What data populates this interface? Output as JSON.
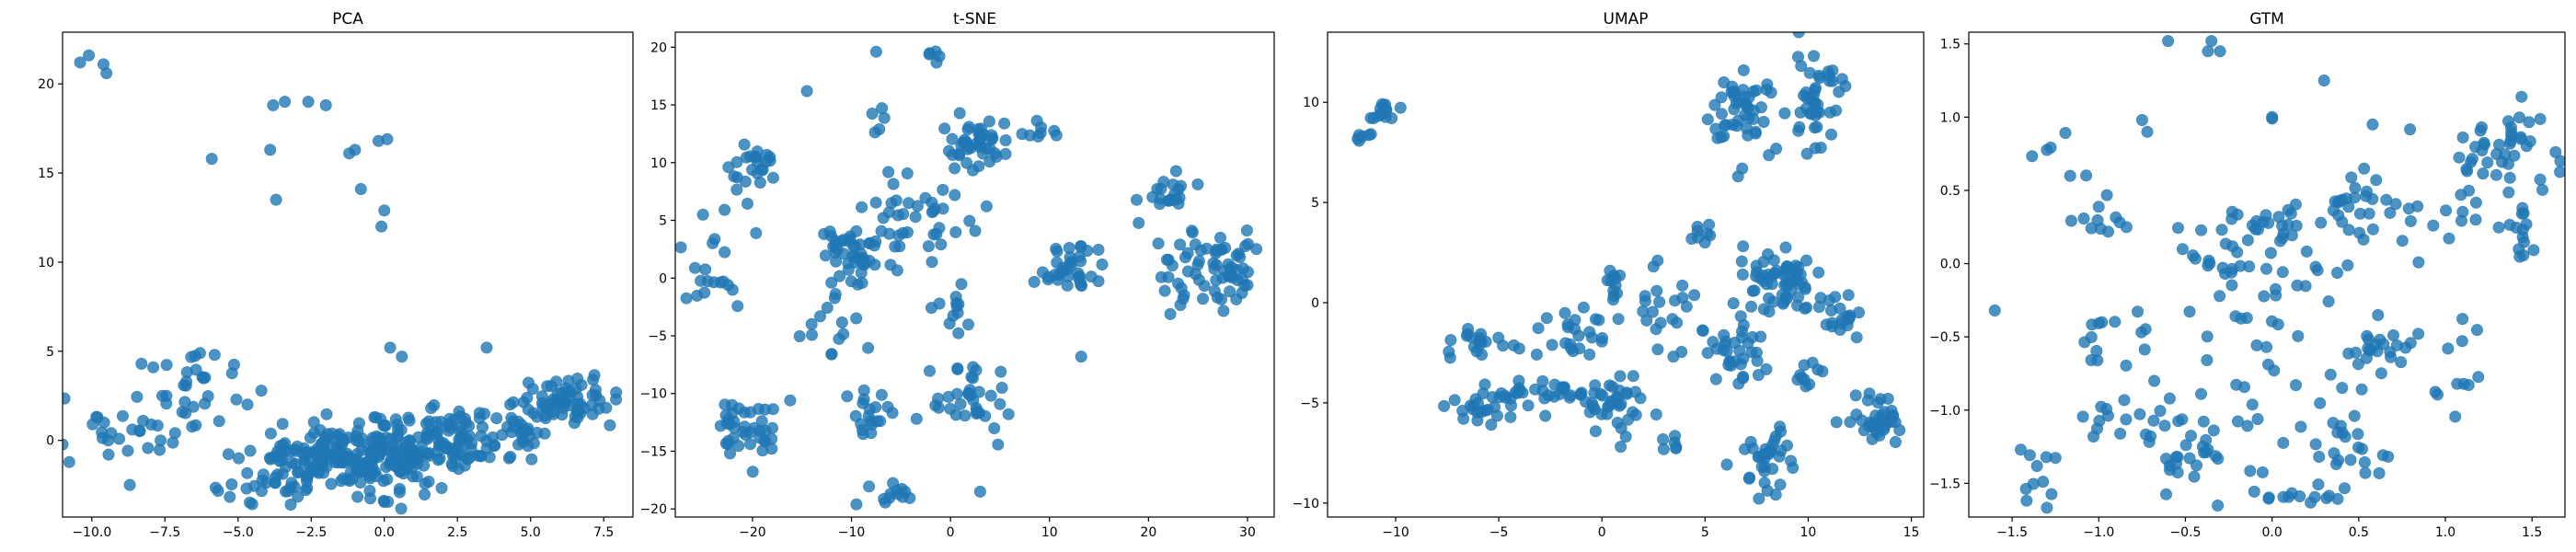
{
  "chart_data": [
    {
      "type": "scatter",
      "title": "PCA",
      "xlim": [
        -11,
        8.5
      ],
      "ylim": [
        -4.3,
        22.9
      ],
      "xticks": [
        -10.0,
        -7.5,
        -5.0,
        -2.5,
        0.0,
        2.5,
        5.0,
        7.5
      ],
      "xtick_labels": [
        "−10.0",
        "−7.5",
        "−5.0",
        "−2.5",
        "0.0",
        "2.5",
        "5.0",
        "7.5"
      ],
      "yticks": [
        0,
        5,
        10,
        15,
        20
      ],
      "ytick_labels": [
        "0",
        "5",
        "10",
        "15",
        "20"
      ],
      "color": "#1f77b4",
      "clusters": [
        {
          "cx": -1.0,
          "cy": -1.0,
          "sx": 1.8,
          "sy": 0.9,
          "n": 260
        },
        {
          "cx": 2.5,
          "cy": 0.2,
          "sx": 1.2,
          "sy": 0.8,
          "n": 80
        },
        {
          "cx": 6.2,
          "cy": 2.2,
          "sx": 0.8,
          "sy": 0.7,
          "n": 70
        },
        {
          "cx": 4.8,
          "cy": 0.5,
          "sx": 0.5,
          "sy": 0.6,
          "n": 20
        },
        {
          "cx": -6.5,
          "cy": 2.5,
          "sx": 0.9,
          "sy": 1.0,
          "n": 30
        },
        {
          "cx": -9.0,
          "cy": 0.5,
          "sx": 1.0,
          "sy": 1.0,
          "n": 25
        },
        {
          "cx": -4.5,
          "cy": -2.5,
          "sx": 0.8,
          "sy": 0.5,
          "n": 15
        }
      ],
      "points": [
        [
          -10.4,
          21.2
        ],
        [
          -10.1,
          21.6
        ],
        [
          -9.6,
          21.1
        ],
        [
          -9.5,
          20.6
        ],
        [
          -3.8,
          18.8
        ],
        [
          -3.4,
          19.0
        ],
        [
          -2.6,
          19.0
        ],
        [
          -2.0,
          18.8
        ],
        [
          -1.2,
          16.1
        ],
        [
          -1.0,
          16.3
        ],
        [
          -0.2,
          16.8
        ],
        [
          0.1,
          16.9
        ],
        [
          -3.9,
          16.3
        ],
        [
          -3.7,
          13.5
        ],
        [
          -0.8,
          14.1
        ],
        [
          0.0,
          12.9
        ],
        [
          -0.1,
          12.0
        ],
        [
          -5.9,
          15.8
        ],
        [
          -8.3,
          4.3
        ],
        [
          -7.9,
          4.1
        ],
        [
          -6.3,
          4.9
        ],
        [
          -5.8,
          4.8
        ],
        [
          0.2,
          5.2
        ],
        [
          0.6,
          4.7
        ],
        [
          3.5,
          5.2
        ],
        [
          -8.7,
          -2.5
        ]
      ]
    },
    {
      "type": "scatter",
      "title": "t-SNE",
      "xlim": [
        -27.8,
        32.7
      ],
      "ylim": [
        -20.7,
        21.3
      ],
      "xticks": [
        -20,
        -10,
        0,
        10,
        20,
        30
      ],
      "xtick_labels": [
        "−20",
        "−10",
        "0",
        "10",
        "20",
        "30"
      ],
      "yticks": [
        -20,
        -15,
        -10,
        -5,
        0,
        5,
        10,
        15,
        20
      ],
      "ytick_labels": [
        "−20",
        "−15",
        "−10",
        "−5",
        "0",
        "5",
        "10",
        "15",
        "20"
      ],
      "color": "#1f77b4",
      "clusters": [
        {
          "cx": -20.0,
          "cy": 9.0,
          "sx": 1.3,
          "sy": 1.2,
          "n": 25
        },
        {
          "cx": -24.0,
          "cy": 1.0,
          "sx": 1.4,
          "sy": 1.8,
          "n": 18
        },
        {
          "cx": -20.0,
          "cy": -13.0,
          "sx": 1.8,
          "sy": 1.5,
          "n": 40
        },
        {
          "cx": -10.0,
          "cy": 2.0,
          "sx": 1.5,
          "sy": 1.3,
          "n": 45
        },
        {
          "cx": -12.0,
          "cy": -5.0,
          "sx": 1.5,
          "sy": 1.8,
          "n": 15
        },
        {
          "cx": -8.0,
          "cy": -12.0,
          "sx": 1.5,
          "sy": 1.5,
          "n": 20
        },
        {
          "cx": -6.0,
          "cy": -18.5,
          "sx": 1.0,
          "sy": 0.6,
          "n": 12
        },
        {
          "cx": -3.0,
          "cy": 5.0,
          "sx": 2.5,
          "sy": 2.0,
          "n": 40
        },
        {
          "cx": 2.5,
          "cy": 11.5,
          "sx": 1.5,
          "sy": 1.0,
          "n": 45
        },
        {
          "cx": 2.0,
          "cy": -10.0,
          "sx": 1.8,
          "sy": 2.0,
          "n": 35
        },
        {
          "cx": 0.0,
          "cy": -3.5,
          "sx": 1.5,
          "sy": 1.0,
          "n": 12
        },
        {
          "cx": 12.0,
          "cy": 1.0,
          "sx": 1.8,
          "sy": 1.2,
          "n": 35
        },
        {
          "cx": 9.0,
          "cy": 12.5,
          "sx": 1.0,
          "sy": 0.5,
          "n": 8
        },
        {
          "cx": 22.0,
          "cy": 7.5,
          "sx": 1.5,
          "sy": 1.0,
          "n": 20
        },
        {
          "cx": 22.0,
          "cy": 0.0,
          "sx": 1.5,
          "sy": 2.5,
          "n": 20
        },
        {
          "cx": 28.0,
          "cy": 1.0,
          "sx": 1.8,
          "sy": 2.0,
          "n": 50
        },
        {
          "cx": -7.0,
          "cy": 14.0,
          "sx": 0.6,
          "sy": 0.8,
          "n": 5
        },
        {
          "cx": -2.0,
          "cy": 19.3,
          "sx": 0.6,
          "sy": 0.4,
          "n": 5
        }
      ],
      "points": [
        [
          -14.5,
          16.2
        ],
        [
          -7.5,
          19.6
        ],
        [
          13.2,
          -6.8
        ],
        [
          3.0,
          -18.5
        ],
        [
          -9.5,
          -19.6
        ],
        [
          -25.0,
          5.5
        ]
      ]
    },
    {
      "type": "scatter",
      "title": "UMAP",
      "xlim": [
        -13.3,
        15.6
      ],
      "ylim": [
        -10.7,
        13.5
      ],
      "xticks": [
        -10,
        -5,
        0,
        5,
        10,
        15
      ],
      "xtick_labels": [
        "−10",
        "−5",
        "0",
        "5",
        "10",
        "15"
      ],
      "yticks": [
        -10,
        -5,
        0,
        5,
        10
      ],
      "ytick_labels": [
        "−10",
        "−5",
        "0",
        "5",
        "10"
      ],
      "color": "#1f77b4",
      "clusters": [
        {
          "cx": -10.5,
          "cy": 9.5,
          "sx": 0.4,
          "sy": 0.3,
          "n": 15
        },
        {
          "cx": -11.6,
          "cy": 8.1,
          "sx": 0.2,
          "sy": 0.2,
          "n": 6
        },
        {
          "cx": 6.5,
          "cy": 9.5,
          "sx": 0.8,
          "sy": 0.9,
          "n": 45
        },
        {
          "cx": 10.2,
          "cy": 10.3,
          "sx": 0.8,
          "sy": 1.2,
          "n": 45
        },
        {
          "cx": 8.5,
          "cy": 1.0,
          "sx": 1.0,
          "sy": 0.8,
          "n": 60
        },
        {
          "cx": 6.5,
          "cy": -2.5,
          "sx": 0.7,
          "sy": 1.0,
          "n": 35
        },
        {
          "cx": 11.5,
          "cy": -0.5,
          "sx": 0.7,
          "sy": 0.6,
          "n": 20
        },
        {
          "cx": 10.0,
          "cy": -3.5,
          "sx": 0.5,
          "sy": 0.4,
          "n": 10
        },
        {
          "cx": 13.2,
          "cy": -5.8,
          "sx": 0.8,
          "sy": 0.6,
          "n": 35
        },
        {
          "cx": 8.0,
          "cy": -8.0,
          "sx": 0.6,
          "sy": 0.8,
          "n": 35
        },
        {
          "cx": 0.5,
          "cy": -5.0,
          "sx": 0.8,
          "sy": 0.8,
          "n": 40
        },
        {
          "cx": -3.0,
          "cy": -4.5,
          "sx": 1.2,
          "sy": 0.3,
          "n": 25
        },
        {
          "cx": -5.5,
          "cy": -5.2,
          "sx": 0.7,
          "sy": 0.5,
          "n": 25
        },
        {
          "cx": -6.0,
          "cy": -2.0,
          "sx": 0.9,
          "sy": 0.4,
          "n": 20
        },
        {
          "cx": -1.0,
          "cy": -1.5,
          "sx": 1.0,
          "sy": 0.6,
          "n": 25
        },
        {
          "cx": 0.5,
          "cy": 1.0,
          "sx": 0.3,
          "sy": 0.6,
          "n": 10
        },
        {
          "cx": 3.0,
          "cy": -0.5,
          "sx": 0.8,
          "sy": 1.0,
          "n": 20
        },
        {
          "cx": 5.0,
          "cy": 3.2,
          "sx": 0.4,
          "sy": 0.4,
          "n": 8
        },
        {
          "cx": 3.5,
          "cy": -7.2,
          "sx": 0.3,
          "sy": 0.2,
          "n": 6
        }
      ],
      "points": [
        [
          6.6,
          6.3
        ],
        [
          6.8,
          6.7
        ],
        [
          2.5,
          1.8
        ],
        [
          2.7,
          2.1
        ]
      ]
    },
    {
      "type": "scatter",
      "title": "GTM",
      "xlim": [
        -1.75,
        1.69
      ],
      "ylim": [
        -1.73,
        1.58
      ],
      "xticks": [
        -1.5,
        -1.0,
        -0.5,
        0.0,
        0.5,
        1.0,
        1.5
      ],
      "xtick_labels": [
        "−1.5",
        "−1.0",
        "−0.5",
        "0.0",
        "0.5",
        "1.0",
        "1.5"
      ],
      "yticks": [
        -1.5,
        -1.0,
        -0.5,
        0.0,
        0.5,
        1.0,
        1.5
      ],
      "ytick_labels": [
        "−1.5",
        "−1.0",
        "−0.5",
        "0.0",
        "0.5",
        "1.0",
        "1.5"
      ],
      "color": "#1f77b4",
      "clusters": [
        {
          "cx": 1.35,
          "cy": 0.75,
          "sx": 0.15,
          "sy": 0.15,
          "n": 40
        },
        {
          "cx": 1.45,
          "cy": 0.2,
          "sx": 0.08,
          "sy": 0.12,
          "n": 15
        },
        {
          "cx": 0.5,
          "cy": 0.4,
          "sx": 0.12,
          "sy": 0.15,
          "n": 25
        },
        {
          "cx": 0.65,
          "cy": -0.6,
          "sx": 0.12,
          "sy": 0.1,
          "n": 20
        },
        {
          "cx": 0.45,
          "cy": -1.3,
          "sx": 0.15,
          "sy": 0.12,
          "n": 20
        },
        {
          "cx": -0.45,
          "cy": -1.3,
          "sx": 0.15,
          "sy": 0.12,
          "n": 30
        },
        {
          "cx": -1.35,
          "cy": -1.5,
          "sx": 0.08,
          "sy": 0.1,
          "n": 10
        },
        {
          "cx": -0.9,
          "cy": -1.0,
          "sx": 0.15,
          "sy": 0.12,
          "n": 15
        },
        {
          "cx": -0.05,
          "cy": 0.3,
          "sx": 0.15,
          "sy": 0.08,
          "n": 20
        },
        {
          "cx": 0.05,
          "cy": -0.2,
          "sx": 0.25,
          "sy": 0.2,
          "n": 30
        },
        {
          "cx": -1.0,
          "cy": 0.3,
          "sx": 0.12,
          "sy": 0.1,
          "n": 12
        },
        {
          "cx": -0.95,
          "cy": -0.5,
          "sx": 0.12,
          "sy": 0.08,
          "n": 12
        },
        {
          "cx": 0.0,
          "cy": -0.7,
          "sx": 0.3,
          "sy": 0.25,
          "n": 30
        },
        {
          "cx": 0.9,
          "cy": 0.3,
          "sx": 0.25,
          "sy": 0.3,
          "n": 20
        },
        {
          "cx": 0.1,
          "cy": -1.6,
          "sx": 0.15,
          "sy": 0.03,
          "n": 12
        },
        {
          "cx": -0.3,
          "cy": 0.0,
          "sx": 0.1,
          "sy": 0.1,
          "n": 10
        },
        {
          "cx": 1.1,
          "cy": -0.8,
          "sx": 0.1,
          "sy": 0.2,
          "n": 10
        },
        {
          "cx": -1.25,
          "cy": 0.85,
          "sx": 0.05,
          "sy": 0.08,
          "n": 5
        }
      ],
      "points": [
        [
          -0.6,
          1.52
        ],
        [
          -0.35,
          1.52
        ],
        [
          -0.3,
          1.45
        ],
        [
          0.3,
          1.25
        ],
        [
          -0.37,
          1.45
        ],
        [
          0.0,
          1.0
        ],
        [
          0.0,
          0.99
        ],
        [
          0.58,
          0.95
        ],
        [
          -0.75,
          0.98
        ],
        [
          -0.72,
          0.9
        ],
        [
          -1.6,
          -0.32
        ],
        [
          -1.45,
          -1.27
        ]
      ]
    }
  ]
}
